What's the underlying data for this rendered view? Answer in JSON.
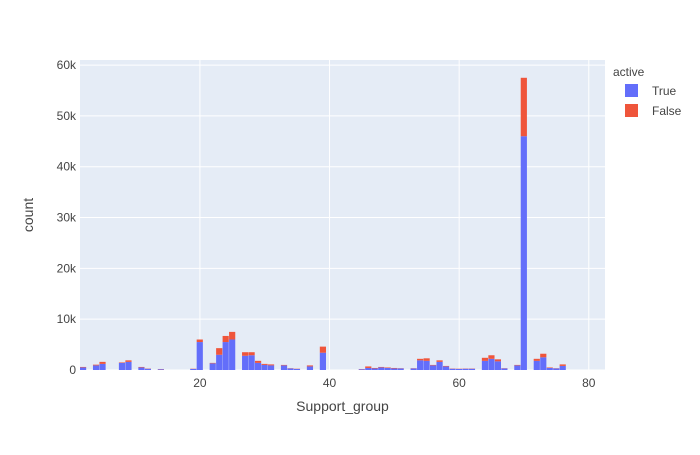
{
  "chart_data": {
    "type": "bar",
    "barmode": "stack",
    "xlabel": "Support_group",
    "ylabel": "count",
    "legend_title": "active",
    "legend_position": "right",
    "xlim": [
      1.5,
      82.5
    ],
    "ylim": [
      0,
      61000
    ],
    "xticks": [
      20,
      40,
      60,
      80
    ],
    "xtick_labels": [
      "20",
      "40",
      "60",
      "80"
    ],
    "yticks": [
      0,
      10000,
      20000,
      30000,
      40000,
      50000,
      60000
    ],
    "ytick_labels": [
      "0",
      "10k",
      "20k",
      "30k",
      "40k",
      "50k",
      "60k"
    ],
    "grid": true,
    "plot_background": "#E5ECF6",
    "series": [
      {
        "name": "True",
        "color": "#636EFA",
        "points": [
          [
            2,
            500
          ],
          [
            4,
            900
          ],
          [
            5,
            1200
          ],
          [
            8,
            1400
          ],
          [
            9,
            1600
          ],
          [
            11,
            500
          ],
          [
            12,
            250
          ],
          [
            14,
            150
          ],
          [
            19,
            200
          ],
          [
            20,
            5500
          ],
          [
            22,
            1300
          ],
          [
            23,
            3000
          ],
          [
            24,
            5500
          ],
          [
            25,
            6000
          ],
          [
            27,
            2800
          ],
          [
            28,
            2900
          ],
          [
            29,
            1400
          ],
          [
            30,
            1000
          ],
          [
            31,
            900
          ],
          [
            33,
            900
          ],
          [
            34,
            300
          ],
          [
            35,
            200
          ],
          [
            37,
            700
          ],
          [
            39,
            3400
          ],
          [
            45,
            150
          ],
          [
            46,
            400
          ],
          [
            47,
            300
          ],
          [
            48,
            500
          ],
          [
            49,
            400
          ],
          [
            50,
            300
          ],
          [
            51,
            300
          ],
          [
            53,
            300
          ],
          [
            54,
            1900
          ],
          [
            55,
            1800
          ],
          [
            56,
            900
          ],
          [
            57,
            1600
          ],
          [
            58,
            700
          ],
          [
            59,
            250
          ],
          [
            60,
            200
          ],
          [
            61,
            250
          ],
          [
            62,
            250
          ],
          [
            64,
            1800
          ],
          [
            65,
            2200
          ],
          [
            66,
            1700
          ],
          [
            67,
            300
          ],
          [
            69,
            900
          ],
          [
            70,
            46000
          ],
          [
            72,
            1800
          ],
          [
            73,
            2500
          ],
          [
            74,
            400
          ],
          [
            75,
            300
          ],
          [
            76,
            800
          ]
        ]
      },
      {
        "name": "False",
        "color": "#EF553B",
        "points": [
          [
            2,
            100
          ],
          [
            4,
            150
          ],
          [
            5,
            400
          ],
          [
            8,
            100
          ],
          [
            9,
            300
          ],
          [
            11,
            100
          ],
          [
            12,
            50
          ],
          [
            14,
            50
          ],
          [
            19,
            50
          ],
          [
            20,
            500
          ],
          [
            22,
            100
          ],
          [
            23,
            1300
          ],
          [
            24,
            1200
          ],
          [
            25,
            1500
          ],
          [
            27,
            700
          ],
          [
            28,
            600
          ],
          [
            29,
            400
          ],
          [
            30,
            200
          ],
          [
            31,
            200
          ],
          [
            33,
            100
          ],
          [
            34,
            50
          ],
          [
            35,
            50
          ],
          [
            37,
            200
          ],
          [
            39,
            1200
          ],
          [
            45,
            50
          ],
          [
            46,
            300
          ],
          [
            47,
            100
          ],
          [
            48,
            100
          ],
          [
            49,
            100
          ],
          [
            50,
            100
          ],
          [
            51,
            50
          ],
          [
            53,
            50
          ],
          [
            54,
            300
          ],
          [
            55,
            500
          ],
          [
            56,
            100
          ],
          [
            57,
            300
          ],
          [
            58,
            100
          ],
          [
            59,
            50
          ],
          [
            60,
            50
          ],
          [
            61,
            50
          ],
          [
            62,
            50
          ],
          [
            64,
            600
          ],
          [
            65,
            700
          ],
          [
            66,
            400
          ],
          [
            67,
            50
          ],
          [
            69,
            100
          ],
          [
            70,
            11500
          ],
          [
            72,
            400
          ],
          [
            73,
            700
          ],
          [
            74,
            100
          ],
          [
            75,
            50
          ],
          [
            76,
            300
          ]
        ]
      }
    ]
  }
}
